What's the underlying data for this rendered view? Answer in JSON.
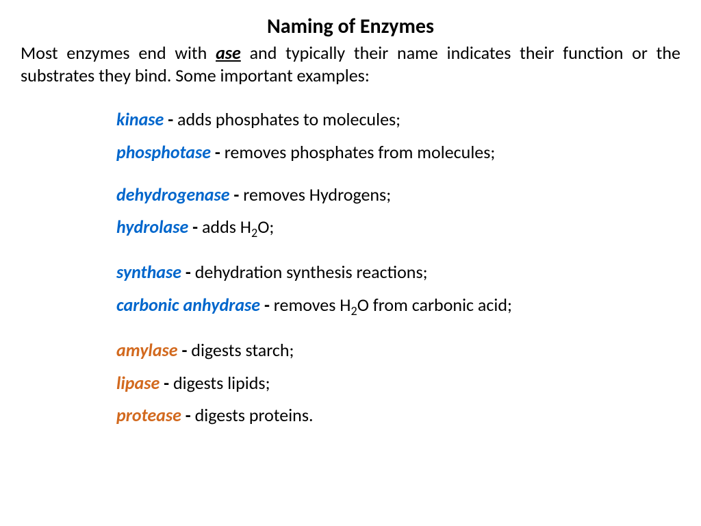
{
  "title": "Naming of Enzymes",
  "intro_before": "Most enzymes end with ",
  "intro_ase": "ase",
  "intro_after": " and typically their name indicates their function or the substrates they bind. Some important examples:",
  "items": [
    {
      "term": "kinase",
      "color": "blue",
      "desc": " adds phosphates to molecules;",
      "gap": false,
      "h2o": false
    },
    {
      "term": "phosphotase",
      "color": "blue",
      "desc": " removes phosphates from molecules;",
      "gap": false,
      "h2o": false
    },
    {
      "term": "dehydrogenase",
      "color": "blue",
      "desc": " removes Hydrogens;",
      "gap": true,
      "h2o": false
    },
    {
      "term": "hydrolase",
      "color": "blue",
      "desc_before": " adds H",
      "desc_after": "O;",
      "gap": false,
      "h2o": true
    },
    {
      "term": "synthase",
      "color": "blue",
      "desc": " dehydration synthesis reactions;",
      "gap": true,
      "h2o": false
    },
    {
      "term": "carbonic anhydrase",
      "color": "blue",
      "desc_before": " removes H",
      "desc_after": "O from carbonic acid;",
      "gap": false,
      "h2o": true
    },
    {
      "term": "amylase",
      "color": "orange",
      "desc": " digests starch;",
      "gap": true,
      "h2o": false
    },
    {
      "term": "lipase",
      "color": "orange",
      "desc": " digests lipids;",
      "gap": false,
      "h2o": false
    },
    {
      "term": "protease",
      "color": "orange",
      "desc": " digests proteins.",
      "gap": false,
      "h2o": false
    }
  ],
  "colors": {
    "blue": "#0066cc",
    "orange": "#d2691e",
    "text": "#000000",
    "background": "#ffffff"
  },
  "typography": {
    "title_fontsize": 30,
    "body_fontsize": 26,
    "font_family": "Calibri"
  }
}
